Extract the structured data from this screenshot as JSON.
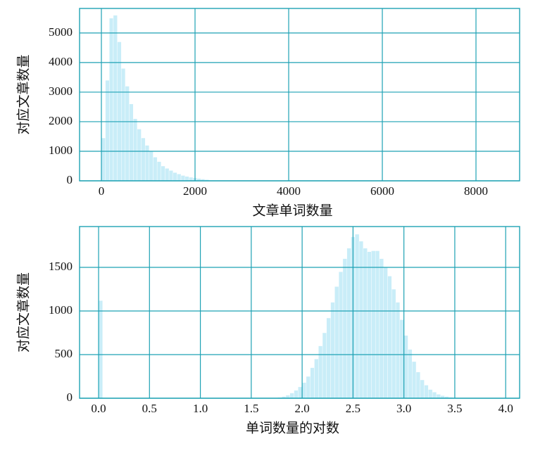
{
  "chart_data": [
    {
      "type": "histogram",
      "xlabel": "文章单词数量",
      "ylabel": "对应文章数量",
      "color": "#c9edf8",
      "grid": true,
      "xlim": [
        -466,
        8932
      ],
      "ylim": [
        0,
        5830
      ],
      "xticks": [
        0,
        2000,
        4000,
        6000,
        8000
      ],
      "yticks": [
        0,
        1000,
        2000,
        3000,
        4000,
        5000
      ],
      "bins": [
        0,
        85,
        170,
        255,
        340,
        425,
        510,
        595,
        680,
        765,
        850,
        935,
        1020,
        1105,
        1190,
        1275,
        1360,
        1445,
        1530,
        1615,
        1700,
        1785,
        1870,
        1955,
        2040,
        2125,
        2210,
        2295,
        2380,
        2465,
        2550,
        2635,
        2720,
        2805,
        2890,
        2975,
        3060,
        3145,
        3230,
        3315,
        3400,
        3485,
        3570,
        3655,
        3740,
        3825,
        3910,
        3995,
        4080,
        4165,
        4250,
        4335,
        4420,
        4505,
        4590,
        4675,
        4760,
        4845,
        4930,
        5015,
        5100,
        5185,
        5270,
        5355,
        5440,
        5525,
        5610,
        5695,
        5780,
        5865,
        5950,
        6035,
        6120,
        6205,
        6290,
        6375,
        6460,
        6545,
        6630,
        6715,
        6800,
        6885,
        6970,
        7055,
        7140,
        7225,
        7310,
        7395,
        7480,
        7565,
        7650,
        7735,
        7820,
        7905,
        7990,
        8075,
        8160,
        8245,
        8330,
        8415,
        8500
      ],
      "values": [
        1450,
        3400,
        5500,
        5600,
        4700,
        3800,
        3200,
        2600,
        2100,
        1750,
        1450,
        1200,
        1000,
        800,
        650,
        500,
        420,
        350,
        280,
        230,
        180,
        150,
        120,
        100,
        80,
        60,
        40,
        0,
        0,
        0,
        0,
        0,
        0,
        0,
        0,
        0,
        0,
        0,
        0,
        0,
        0,
        0,
        0,
        0,
        0,
        0,
        0,
        0,
        0,
        0,
        0,
        0,
        0,
        0,
        0,
        0,
        0,
        0,
        0,
        0,
        0,
        0,
        0,
        0,
        0,
        0,
        0,
        0,
        0,
        0,
        0,
        0,
        0,
        0,
        0,
        0,
        0,
        0,
        0,
        0,
        0,
        0,
        0,
        0,
        0,
        0,
        0,
        0,
        0,
        0,
        0,
        0,
        0,
        0,
        0,
        0,
        0,
        0,
        0,
        1
      ]
    },
    {
      "type": "histogram",
      "xlabel": "单词数量的对数",
      "ylabel": "对应文章数量",
      "color": "#c9edf8",
      "grid": true,
      "xlim": [
        -0.187,
        4.137
      ],
      "ylim": [
        0,
        1968
      ],
      "xticks": [
        {
          "value": 0,
          "label": "0.0"
        },
        {
          "value": 0.5,
          "label": "0.5"
        },
        {
          "value": 1,
          "label": "1.0"
        },
        {
          "value": 1.5,
          "label": "1.5"
        },
        {
          "value": 2,
          "label": "2.0"
        },
        {
          "value": 2.5,
          "label": "2.5"
        },
        {
          "value": 3,
          "label": "3.0"
        },
        {
          "value": 3.5,
          "label": "3.5"
        },
        {
          "value": 4,
          "label": "4.0"
        }
      ],
      "yticks": [
        0,
        500,
        1000,
        1500
      ],
      "bins": [
        0,
        0.04,
        0.08,
        0.12,
        0.16,
        0.2,
        0.24,
        0.28,
        0.32,
        0.36,
        0.4,
        0.44,
        0.48,
        0.52,
        0.56,
        0.6,
        0.64,
        0.68,
        0.72,
        0.76,
        0.8,
        0.84,
        0.88,
        0.92,
        0.96,
        1,
        1.04,
        1.08,
        1.12,
        1.16,
        1.2,
        1.24,
        1.28,
        1.32,
        1.36,
        1.4,
        1.44,
        1.48,
        1.52,
        1.56,
        1.6,
        1.64,
        1.68,
        1.72,
        1.76,
        1.8,
        1.84,
        1.88,
        1.92,
        1.96,
        2,
        2.04,
        2.08,
        2.12,
        2.16,
        2.2,
        2.24,
        2.28,
        2.32,
        2.36,
        2.4,
        2.44,
        2.48,
        2.52,
        2.56,
        2.6,
        2.64,
        2.68,
        2.72,
        2.76,
        2.8,
        2.84,
        2.88,
        2.92,
        2.96,
        3,
        3.04,
        3.08,
        3.12,
        3.16,
        3.2,
        3.24,
        3.28,
        3.32,
        3.36,
        3.4,
        3.44,
        3.48,
        3.52,
        3.56,
        3.6,
        3.64,
        3.68,
        3.72,
        3.76,
        3.8,
        3.84,
        3.88,
        3.92,
        3.96,
        4
      ],
      "values": [
        1120,
        0,
        0,
        0,
        0,
        0,
        0,
        0,
        0,
        0,
        0,
        0,
        0,
        0,
        0,
        0,
        0,
        0,
        0,
        0,
        0,
        0,
        0,
        0,
        0,
        0,
        0,
        0,
        0,
        0,
        0,
        0,
        0,
        0,
        0,
        0,
        0,
        0,
        0,
        0,
        0,
        0,
        0,
        5,
        10,
        20,
        35,
        60,
        90,
        130,
        180,
        250,
        350,
        450,
        600,
        750,
        920,
        1100,
        1280,
        1450,
        1600,
        1720,
        1850,
        1880,
        1800,
        1720,
        1680,
        1690,
        1690,
        1600,
        1500,
        1400,
        1250,
        1100,
        900,
        720,
        560,
        420,
        300,
        210,
        150,
        100,
        70,
        45,
        30,
        20,
        12,
        8,
        4,
        2,
        0,
        0,
        0,
        0,
        0,
        0,
        0,
        0,
        0,
        0
      ]
    }
  ]
}
